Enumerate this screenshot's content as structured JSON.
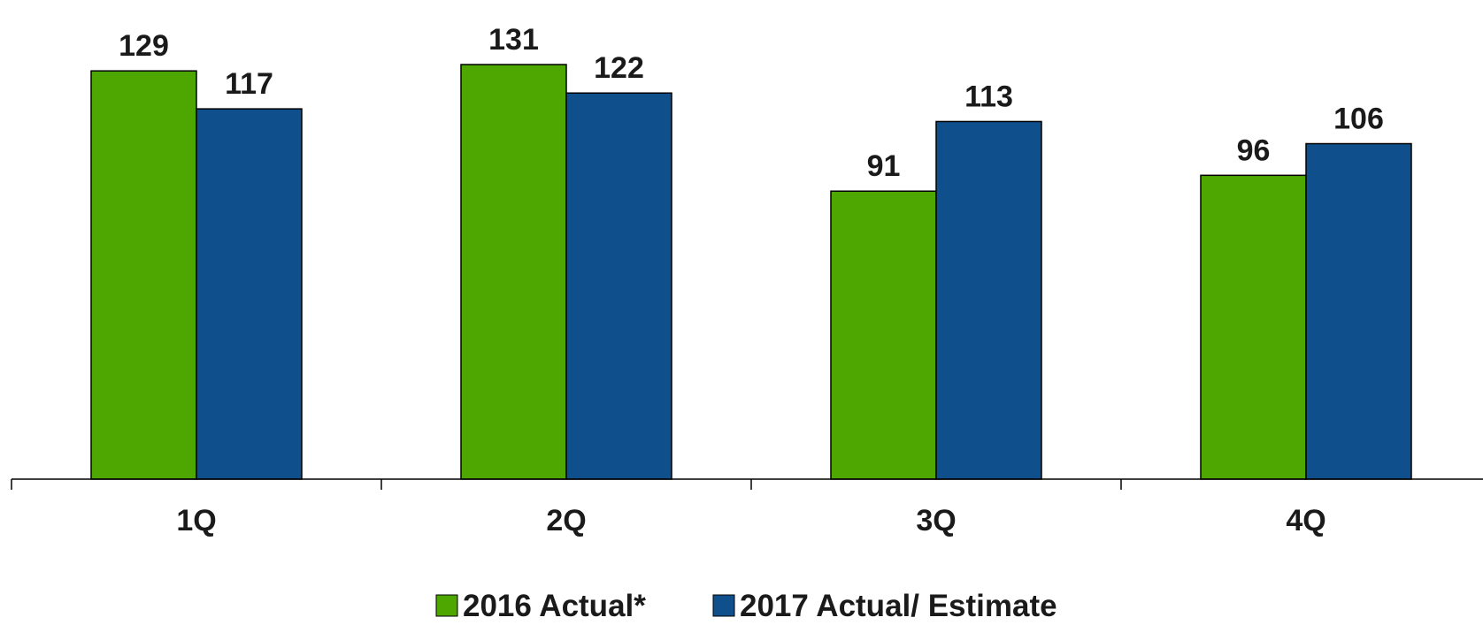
{
  "chart_data": {
    "type": "bar",
    "title": "",
    "xlabel": "",
    "ylabel": "",
    "categories": [
      "1Q",
      "2Q",
      "3Q",
      "4Q"
    ],
    "series": [
      {
        "name": "2016 Actual*",
        "color": "#4ea600",
        "values": [
          129,
          131,
          91,
          96
        ]
      },
      {
        "name": "2017 Actual/ Estimate",
        "color": "#0e4f8c",
        "values": [
          117,
          122,
          113,
          106
        ]
      }
    ],
    "ylim": [
      0,
      140
    ],
    "grid": false,
    "legend_position": "bottom-center"
  }
}
